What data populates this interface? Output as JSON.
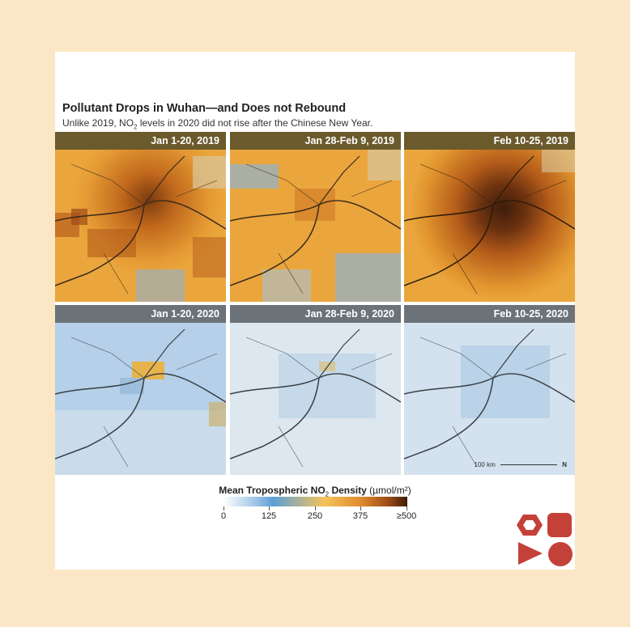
{
  "title": "Pollutant Drops in Wuhan—and Does not Rebound",
  "subtitle": {
    "part1": "Unlike 2019, NO",
    "sub": "2",
    "part2": " levels in 2020 did not rise after the Chinese New Year."
  },
  "panels": [
    {
      "label": "Jan 1-20, 2019",
      "year": 2019,
      "intensity": "high"
    },
    {
      "label": "Jan 28-Feb 9, 2019",
      "year": 2019,
      "intensity": "medium"
    },
    {
      "label": "Feb 10-25, 2019",
      "year": 2019,
      "intensity": "very-high"
    },
    {
      "label": "Jan 1-20, 2020",
      "year": 2020,
      "intensity": "low"
    },
    {
      "label": "Jan 28-Feb 9, 2020",
      "year": 2020,
      "intensity": "very-low"
    },
    {
      "label": "Feb 10-25, 2020",
      "year": 2020,
      "intensity": "very-low"
    }
  ],
  "scale_bar": {
    "label": "100 km",
    "north": "N"
  },
  "legend": {
    "title_bold": "Mean Tropospheric NO",
    "title_sub": "2",
    "title_bold2": " Density",
    "units": " (µmol/m²)",
    "ticks": [
      "0",
      "125",
      "250",
      "375",
      "≥500"
    ]
  },
  "colors": {
    "background": "#fbe7c6",
    "label_2019": "#6b5a2c",
    "label_2020": "#6b7278",
    "logo": "#c4413a"
  }
}
